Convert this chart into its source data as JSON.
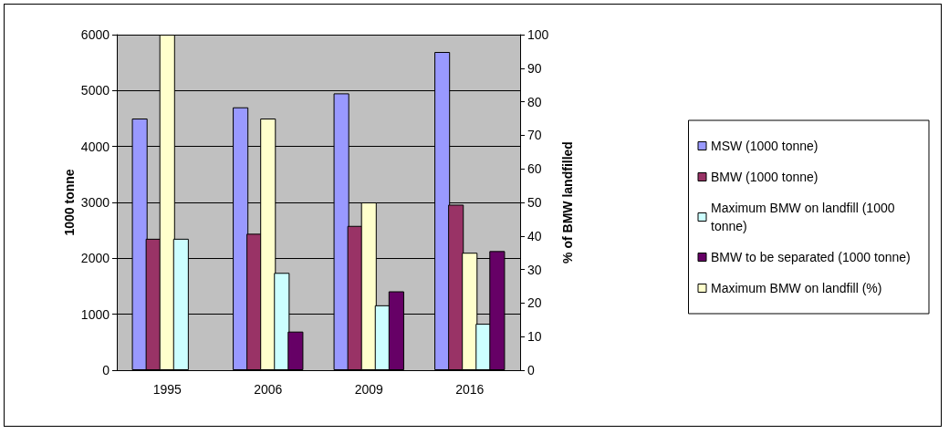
{
  "chart_data": {
    "type": "bar",
    "categories": [
      "1995",
      "2006",
      "2009",
      "2016"
    ],
    "ylabel": "1000 tonne",
    "y2label": "% of BMW landfilled",
    "ylim": [
      0,
      6000
    ],
    "yticks": [
      0,
      1000,
      2000,
      3000,
      4000,
      5000,
      6000
    ],
    "y2lim": [
      0,
      100
    ],
    "y2ticks": [
      0,
      10,
      20,
      30,
      40,
      50,
      60,
      70,
      80,
      90,
      100
    ],
    "grid": "y",
    "legend": "right",
    "series": [
      {
        "name": "MSW (1000 tonne)",
        "color": "#9999ff",
        "values": [
          4500,
          4700,
          4950,
          5690
        ]
      },
      {
        "name": "BMW (1000 tonne)",
        "color": "#993366",
        "values": [
          2350,
          2440,
          2580,
          2960
        ]
      },
      {
        "name": "Maximum BMW on landfill (1000 tonne)",
        "color": "#ccffff",
        "values": [
          2350,
          1740,
          1160,
          830
        ]
      },
      {
        "name": "BMW to be separated (1000 tonne)",
        "color": "#660066",
        "values": [
          null,
          690,
          1410,
          2130
        ]
      },
      {
        "name": "Maximum BMW on landfill (%)",
        "color": "#ffffcc",
        "axis": "y2",
        "values": [
          100,
          75,
          50,
          35
        ]
      }
    ]
  }
}
